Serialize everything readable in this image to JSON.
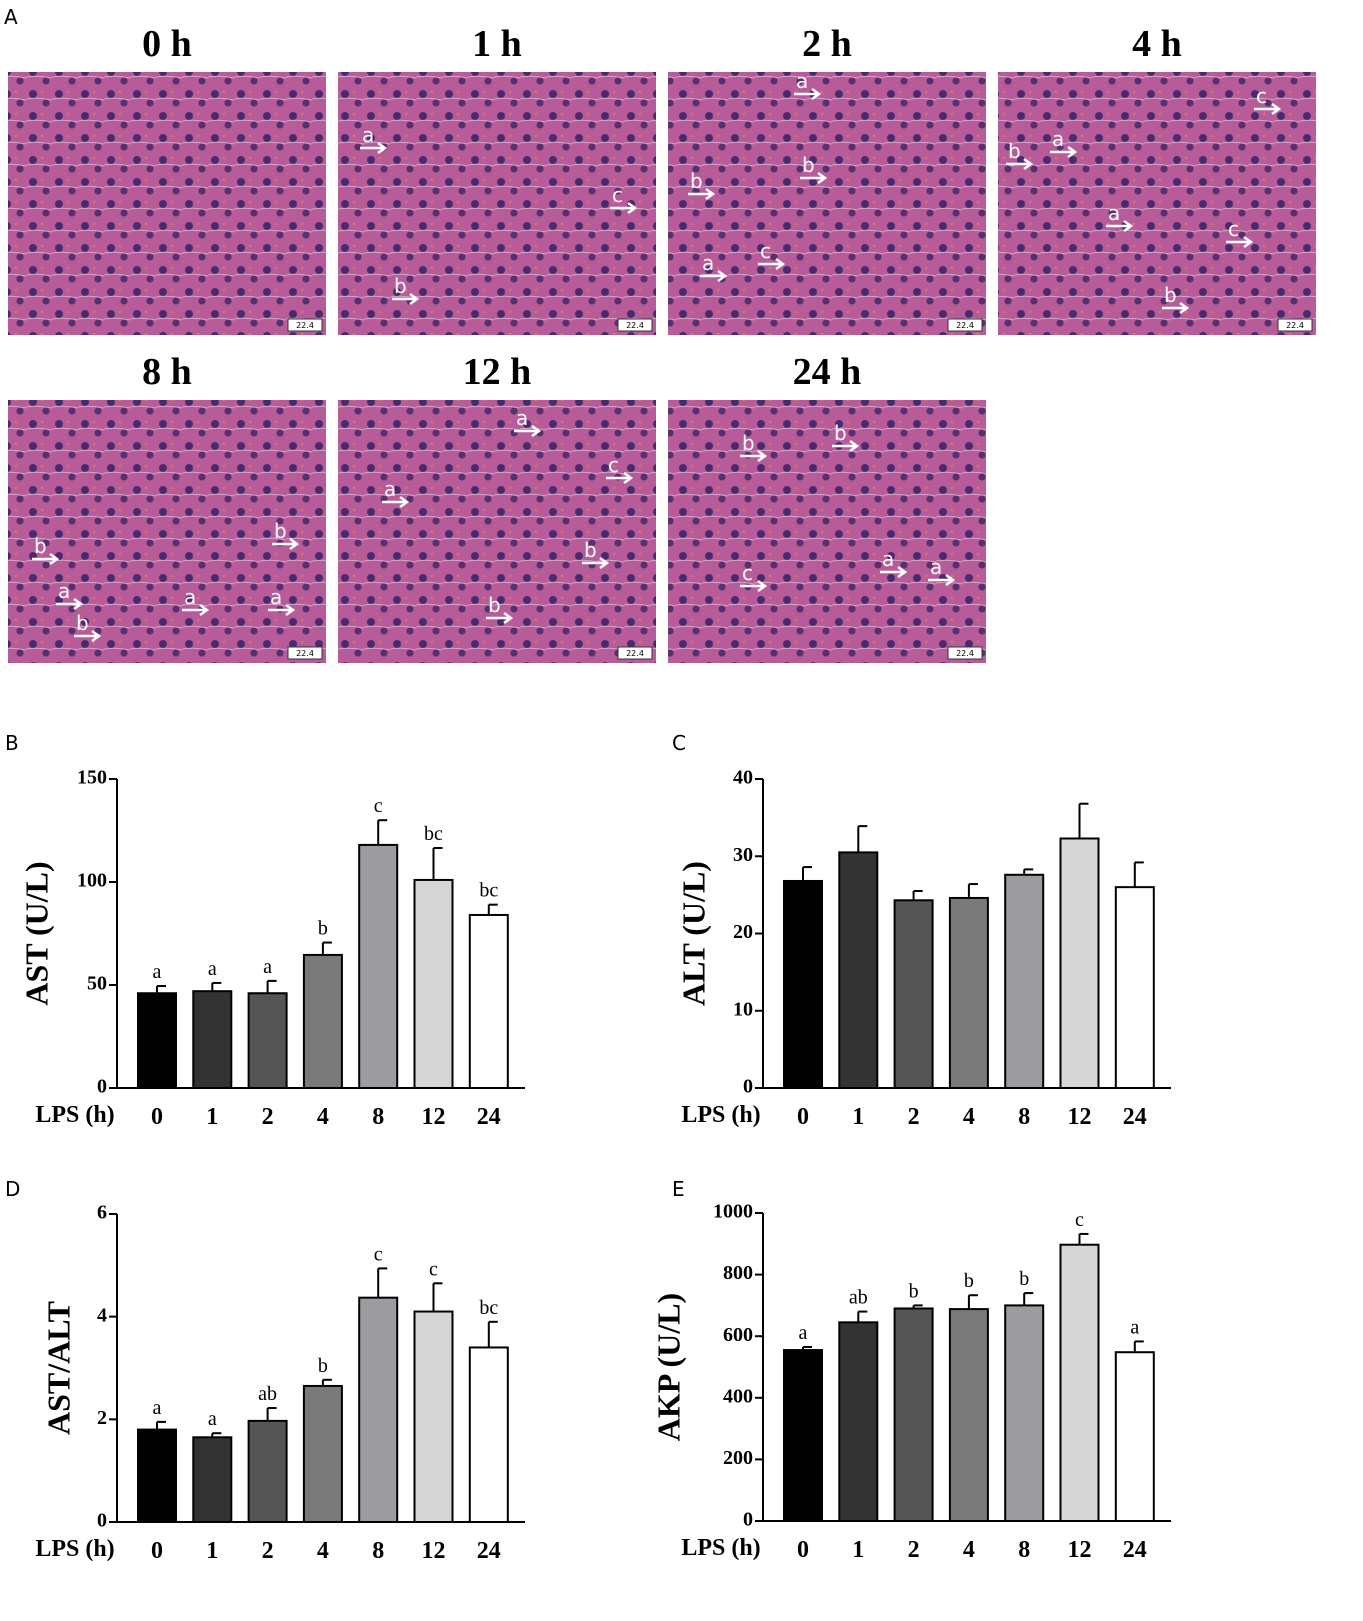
{
  "panel_a": {
    "panel": "A",
    "images": [
      {
        "title": "0 h",
        "scale_label": "22.4",
        "arrows": []
      },
      {
        "title": "1 h",
        "scale_label": "22.4",
        "arrows": [
          "a",
          "b",
          "c"
        ]
      },
      {
        "title": "2 h",
        "scale_label": "22.4",
        "arrows": [
          "a",
          "b",
          "b",
          "a",
          "c"
        ]
      },
      {
        "title": "4 h",
        "scale_label": "22.4",
        "arrows": [
          "c",
          "b",
          "a",
          "a",
          "c",
          "b"
        ]
      },
      {
        "title": "8 h",
        "scale_label": "22.4",
        "arrows": [
          "b",
          "b",
          "a",
          "a",
          "a",
          "b"
        ]
      },
      {
        "title": "12 h",
        "scale_label": "22.4",
        "arrows": [
          "a",
          "c",
          "a",
          "b",
          "b"
        ]
      },
      {
        "title": "24 h",
        "scale_label": "22.4",
        "arrows": [
          "b",
          "b",
          "a",
          "a",
          "c"
        ]
      }
    ]
  },
  "chart_data": [
    {
      "type": "bar",
      "panel": "B",
      "y_label": "AST (U/L)",
      "x_label": "LPS (h)",
      "categories": [
        "0",
        "1",
        "2",
        "4",
        "8",
        "12",
        "24"
      ],
      "values": [
        46,
        47,
        46,
        64.6,
        118,
        101,
        84
      ],
      "errors": [
        3.5,
        4,
        6,
        6,
        12,
        15.5,
        5
      ],
      "annotations": [
        "a",
        "a",
        "a",
        "b",
        "c",
        "bc",
        "bc"
      ],
      "colors": [
        "#000000",
        "#333333",
        "#555555",
        "#7a7a7a",
        "#9c9ca0",
        "#d6d6d6",
        "#ffffff"
      ],
      "ylim": [
        0,
        150
      ],
      "yticks": [
        0,
        50,
        100,
        150
      ]
    },
    {
      "type": "bar",
      "panel": "C",
      "y_label": "ALT (U/L)",
      "x_label": "LPS (h)",
      "categories": [
        "0",
        "1",
        "2",
        "4",
        "8",
        "12",
        "24"
      ],
      "values": [
        26.8,
        30.5,
        24.3,
        24.6,
        27.6,
        32.3,
        26
      ],
      "errors": [
        1.8,
        3.4,
        1.2,
        1.8,
        0.7,
        4.5,
        3.2
      ],
      "colors": [
        "#000000",
        "#333333",
        "#555555",
        "#7a7a7a",
        "#9c9ca0",
        "#d6d6d6",
        "#ffffff"
      ],
      "ylim": [
        0,
        40
      ],
      "yticks": [
        0,
        10,
        20,
        30,
        40
      ]
    },
    {
      "type": "bar",
      "panel": "D",
      "y_label": "AST/ALT",
      "x_label": "LPS (h)",
      "categories": [
        "0",
        "1",
        "2",
        "4",
        "8",
        "12",
        "24"
      ],
      "values": [
        1.8,
        1.65,
        1.97,
        2.65,
        4.37,
        4.1,
        3.4
      ],
      "errors": [
        0.15,
        0.08,
        0.25,
        0.12,
        0.57,
        0.55,
        0.5
      ],
      "annotations": [
        "a",
        "a",
        "ab",
        "b",
        "c",
        "c",
        "bc"
      ],
      "colors": [
        "#000000",
        "#333333",
        "#555555",
        "#7a7a7a",
        "#9c9ca0",
        "#d6d6d6",
        "#ffffff"
      ],
      "ylim": [
        0,
        6
      ],
      "yticks": [
        0,
        2,
        4,
        6
      ]
    },
    {
      "type": "bar",
      "panel": "E",
      "y_label": "AKP (U/L)",
      "x_label": "LPS (h)",
      "categories": [
        "0",
        "1",
        "2",
        "4",
        "8",
        "12",
        "24"
      ],
      "values": [
        555,
        645,
        690,
        688,
        700,
        897,
        548
      ],
      "errors": [
        10,
        35,
        10,
        45,
        40,
        35,
        35
      ],
      "annotations": [
        "a",
        "ab",
        "b",
        "b",
        "b",
        "c",
        "a"
      ],
      "colors": [
        "#000000",
        "#333333",
        "#555555",
        "#7a7a7a",
        "#9c9ca0",
        "#d6d6d6",
        "#ffffff"
      ],
      "ylim": [
        0,
        1000
      ],
      "yticks": [
        0,
        200,
        400,
        600,
        800,
        1000
      ]
    }
  ]
}
